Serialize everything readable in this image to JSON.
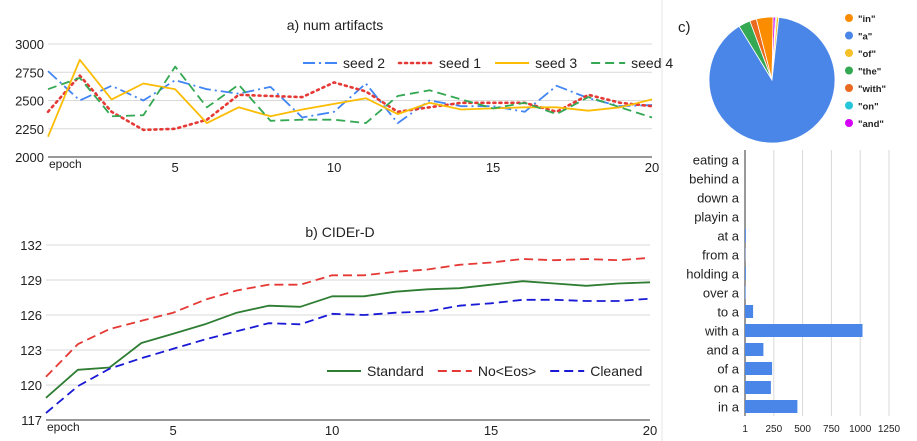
{
  "chart_data": [
    {
      "type": "line",
      "title": "a) num artifacts",
      "xlabel": "epoch",
      "ylabel": "",
      "xlim": [
        1,
        20
      ],
      "ylim": [
        2000,
        3000
      ],
      "xticks": [
        5,
        10,
        15,
        20
      ],
      "yticks": [
        2000,
        2250,
        2500,
        2750,
        3000
      ],
      "legend": "top-right",
      "x": [
        1,
        2,
        3,
        4,
        5,
        6,
        7,
        8,
        9,
        10,
        11,
        12,
        13,
        14,
        15,
        16,
        17,
        18,
        19,
        20
      ],
      "series": [
        {
          "name": "seed 2",
          "color": "#4285f4",
          "dash": "dashdot",
          "values": [
            2760,
            2500,
            2630,
            2500,
            2680,
            2600,
            2560,
            2620,
            2350,
            2400,
            2650,
            2300,
            2500,
            2450,
            2450,
            2400,
            2630,
            2520,
            2450,
            2460
          ]
        },
        {
          "name": "seed 1",
          "color": "#e53935",
          "dash": "dot",
          "values": [
            2400,
            2720,
            2400,
            2240,
            2250,
            2330,
            2550,
            2540,
            2530,
            2660,
            2580,
            2400,
            2440,
            2480,
            2480,
            2480,
            2400,
            2550,
            2480,
            2450
          ]
        },
        {
          "name": "seed 3",
          "color": "#fbbc04",
          "dash": "solid",
          "values": [
            2180,
            2860,
            2510,
            2650,
            2600,
            2300,
            2440,
            2360,
            2420,
            2470,
            2520,
            2380,
            2480,
            2420,
            2430,
            2440,
            2440,
            2410,
            2440,
            2510
          ]
        },
        {
          "name": "seed 4",
          "color": "#34a853",
          "dash": "dash",
          "values": [
            2600,
            2700,
            2360,
            2370,
            2800,
            2440,
            2640,
            2320,
            2330,
            2330,
            2300,
            2540,
            2590,
            2510,
            2430,
            2480,
            2380,
            2530,
            2440,
            2350
          ]
        }
      ]
    },
    {
      "type": "line",
      "title": "b) CIDEr-D",
      "xlabel": "epoch",
      "ylabel": "",
      "xlim": [
        1,
        20
      ],
      "ylim": [
        117,
        132
      ],
      "xticks": [
        5,
        10,
        15,
        20
      ],
      "yticks": [
        117,
        120,
        123,
        126,
        129,
        132
      ],
      "legend": "lower-right",
      "x": [
        1,
        2,
        3,
        4,
        5,
        6,
        7,
        8,
        9,
        10,
        11,
        12,
        13,
        14,
        15,
        16,
        17,
        18,
        19,
        20
      ],
      "series": [
        {
          "name": "Standard",
          "color": "#2e7d32",
          "dash": "solid",
          "values": [
            118.9,
            121.3,
            121.5,
            123.6,
            124.4,
            125.2,
            126.2,
            126.8,
            126.7,
            127.6,
            127.6,
            128.0,
            128.2,
            128.3,
            128.6,
            128.9,
            128.7,
            128.5,
            128.7,
            128.8
          ]
        },
        {
          "name": "No<Eos>",
          "color": "#e53935",
          "dash": "dash",
          "values": [
            120.7,
            123.5,
            124.8,
            125.5,
            126.2,
            127.3,
            128.1,
            128.6,
            128.6,
            129.4,
            129.4,
            129.7,
            129.9,
            130.3,
            130.5,
            130.8,
            130.7,
            130.8,
            130.7,
            130.9
          ]
        },
        {
          "name": "Cleaned",
          "color": "#1a1ad6",
          "dash": "dash",
          "values": [
            117.6,
            119.9,
            121.4,
            122.3,
            123.1,
            123.9,
            124.6,
            125.3,
            125.2,
            126.1,
            126.0,
            126.2,
            126.3,
            126.8,
            127.0,
            127.3,
            127.3,
            127.2,
            127.2,
            127.4
          ]
        }
      ]
    },
    {
      "type": "pie",
      "title": "c)",
      "legend": "right",
      "slices": [
        {
          "label": "\"in\"",
          "value": 450,
          "color": "#fb8c00"
        },
        {
          "label": "\"a\"",
          "value": 9400,
          "color": "#4a86e8"
        },
        {
          "label": "\"of\"",
          "value": 60,
          "color": "#f6c026"
        },
        {
          "label": "\"the\"",
          "value": 320,
          "color": "#34a853"
        },
        {
          "label": "\"with\"",
          "value": 180,
          "color": "#ea6a1f"
        },
        {
          "label": "\"on\"",
          "value": 30,
          "color": "#26c6da"
        },
        {
          "label": "\"and\"",
          "value": 60,
          "color": "#d500f9"
        }
      ]
    },
    {
      "type": "bar",
      "orientation": "horizontal",
      "xlim": [
        0,
        1250
      ],
      "xticks": [
        1,
        250,
        500,
        750,
        1000,
        1250
      ],
      "grid": true,
      "color": "#4a86e8",
      "categories": [
        "eating a",
        "behind a",
        "down a",
        "playin a",
        "at a",
        "from a",
        "holding a",
        "over a",
        "to a",
        "with a",
        "and a",
        "of a",
        "on a",
        "in a"
      ],
      "values": [
        0,
        0,
        0,
        0,
        8,
        3,
        8,
        5,
        70,
        1020,
        160,
        235,
        225,
        455
      ]
    }
  ]
}
